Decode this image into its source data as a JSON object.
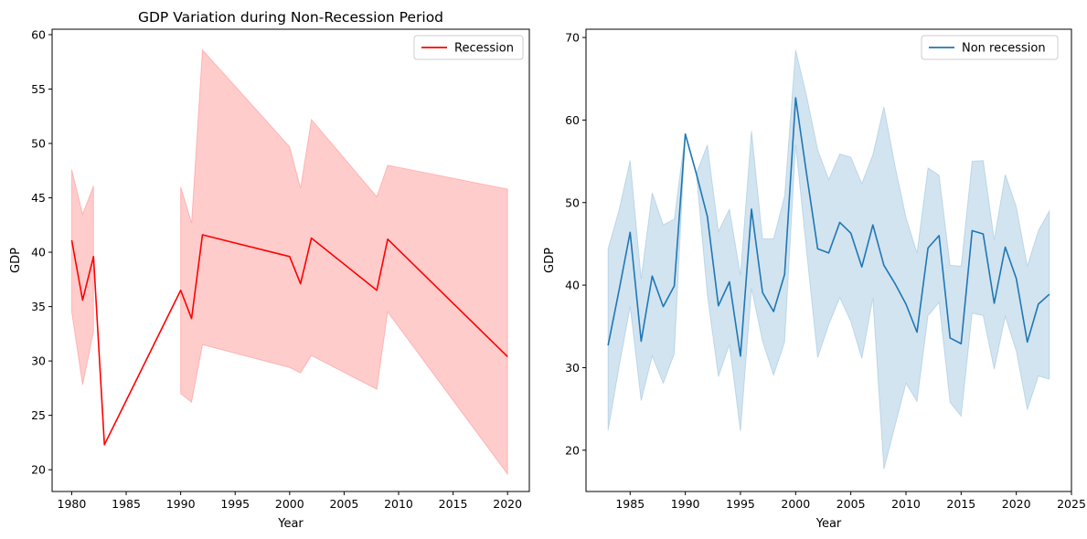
{
  "chart_data": [
    {
      "type": "line",
      "title": "GDP Variation during Non-Recession Period",
      "xlabel": "Year",
      "ylabel": "GDP",
      "xlim": [
        1978.2,
        2022.0
      ],
      "ylim": [
        18.0,
        60.5
      ],
      "xticks": [
        1980,
        1985,
        1990,
        1995,
        2000,
        2005,
        2010,
        2015,
        2020
      ],
      "yticks": [
        20,
        25,
        30,
        35,
        40,
        45,
        50,
        55,
        60
      ],
      "legend_position": "top-right",
      "grid": false,
      "series": [
        {
          "name": "Recession",
          "color": "#ff0000",
          "segments": [
            {
              "x": [
                1980,
                1981,
                1982,
                1983,
                1990,
                1991,
                1992,
                2000,
                2001,
                2002,
                2008,
                2009,
                2020
              ],
              "y": [
                41.1,
                35.6,
                39.6,
                22.3,
                36.5,
                33.9,
                41.6,
                39.6,
                37.1,
                41.3,
                36.5,
                41.2,
                30.4
              ]
            }
          ],
          "band": [
            {
              "x": [
                1980,
                1981,
                1982
              ],
              "lower": [
                34.5,
                27.8,
                32.7
              ],
              "upper": [
                47.6,
                43.5,
                46.1
              ]
            },
            {
              "x": [
                1990,
                1991,
                1992,
                2000,
                2001,
                2002,
                2008,
                2009,
                2020
              ],
              "lower": [
                27.0,
                26.2,
                31.5,
                29.4,
                28.9,
                30.5,
                27.4,
                34.5,
                19.6
              ],
              "upper": [
                46.0,
                42.7,
                58.6,
                49.7,
                45.9,
                52.2,
                45.1,
                48.0,
                45.8
              ]
            }
          ]
        }
      ]
    },
    {
      "type": "line",
      "title": "",
      "xlabel": "Year",
      "ylabel": "GDP",
      "xlim": [
        1981.0,
        2025.0
      ],
      "ylim": [
        15.0,
        71.0
      ],
      "xticks": [
        1985,
        1990,
        1995,
        2000,
        2005,
        2010,
        2015,
        2020,
        2025
      ],
      "yticks": [
        20,
        30,
        40,
        50,
        60,
        70
      ],
      "legend_position": "top-right",
      "grid": false,
      "series": [
        {
          "name": "Non recession",
          "color": "#1f77b4",
          "segments": [
            {
              "x": [
                1983,
                1984,
                1985,
                1986,
                1987,
                1988,
                1989,
                1990,
                1991,
                1992,
                1993,
                1994,
                1995,
                1996,
                1997,
                1998,
                1999,
                2000,
                2001,
                2002,
                2003,
                2004,
                2005,
                2006,
                2007,
                2008,
                2009,
                2010,
                2011,
                2012,
                2013,
                2014,
                2015,
                2016,
                2017,
                2018,
                2019,
                2020,
                2021,
                2022,
                2023
              ],
              "y": [
                32.7,
                39.4,
                46.4,
                33.2,
                41.1,
                37.4,
                39.9,
                58.3,
                53.5,
                48.3,
                37.5,
                40.4,
                31.4,
                49.2,
                39.1,
                36.8,
                41.3,
                62.7,
                53.4,
                44.4,
                43.9,
                47.6,
                46.3,
                42.2,
                47.3,
                42.4,
                40.2,
                37.7,
                34.3,
                44.5,
                46.0,
                33.6,
                32.9,
                46.6,
                46.2,
                37.8,
                44.6,
                40.8,
                33.1,
                37.7,
                38.9
              ]
            }
          ],
          "band": [
            {
              "x": [
                1983,
                1984,
                1985,
                1986,
                1987,
                1988,
                1989,
                1990,
                1991,
                1992,
                1993,
                1994,
                1995,
                1996,
                1997,
                1998,
                1999,
                2000,
                2001,
                2002,
                2003,
                2004,
                2005,
                2006,
                2007,
                2008,
                2009,
                2010,
                2011,
                2012,
                2013,
                2014,
                2015,
                2016,
                2017,
                2018,
                2019,
                2020,
                2021,
                2022,
                2023
              ],
              "lower": [
                22.4,
                30.1,
                37.4,
                26.0,
                31.4,
                28.1,
                31.7,
                58.3,
                53.5,
                38.8,
                28.9,
                32.8,
                22.3,
                39.6,
                33.2,
                29.1,
                33.1,
                57.0,
                44.0,
                31.2,
                35.2,
                38.5,
                35.6,
                31.1,
                38.4,
                17.7,
                22.9,
                28.1,
                25.9,
                36.3,
                37.9,
                25.8,
                24.1,
                36.6,
                36.3,
                29.8,
                36.2,
                32.0,
                24.9,
                29.0,
                28.6
              ],
              "upper": [
                44.4,
                49.1,
                55.1,
                40.8,
                51.2,
                47.3,
                48.0,
                58.3,
                53.5,
                57.0,
                46.5,
                49.2,
                41.2,
                58.7,
                45.6,
                45.6,
                50.8,
                68.5,
                62.9,
                56.4,
                52.8,
                55.9,
                55.5,
                52.3,
                55.8,
                61.6,
                54.5,
                48.2,
                43.9,
                54.2,
                53.3,
                42.4,
                42.3,
                55.0,
                55.1,
                45.5,
                53.4,
                49.5,
                42.3,
                46.6,
                49.0
              ]
            }
          ]
        }
      ]
    }
  ]
}
